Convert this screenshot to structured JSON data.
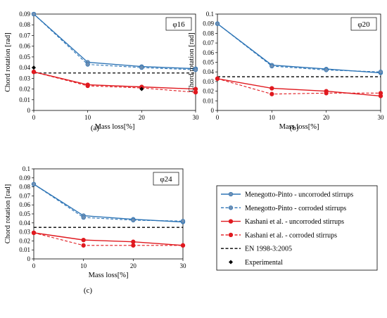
{
  "chart_data": [
    {
      "type": "line",
      "panel_label": "(a)",
      "title": "φ16",
      "xlabel": "Mass loss[%]",
      "ylabel": "Chord rotation [rad]",
      "xlim": [
        0,
        30
      ],
      "ylim": [
        0,
        0.09
      ],
      "x_ticks": [
        "0",
        "10",
        "20",
        "30"
      ],
      "y_ticks": [
        "0",
        "0.01",
        "0.02",
        "0.03",
        "0.04",
        "0.05",
        "0.06",
        "0.07",
        "0.08",
        "0.09"
      ],
      "x": [
        0,
        10,
        20,
        30
      ],
      "series": [
        {
          "name": "Menegotto-Pinto - uncorroded stirrups",
          "values": [
            0.09,
            0.045,
            0.041,
            0.039
          ]
        },
        {
          "name": "Menegotto-Pinto - corroded stirrups",
          "values": [
            0.09,
            0.043,
            0.04,
            0.038
          ]
        },
        {
          "name": "Kashani et al. - uncorroded stirrups",
          "values": [
            0.036,
            0.024,
            0.022,
            0.02
          ]
        },
        {
          "name": "Kashani et al. - corroded stirrups",
          "values": [
            0.036,
            0.023,
            0.021,
            0.017
          ]
        }
      ],
      "en_value": 0.035,
      "experimental": [
        {
          "x": 0,
          "y": 0.04
        },
        {
          "x": 20,
          "y": 0.02
        }
      ]
    },
    {
      "type": "line",
      "panel_label": "(b)",
      "title": "φ20",
      "xlabel": "Mass loss[%]",
      "ylabel": "Chord rotation [rad]",
      "xlim": [
        0,
        30
      ],
      "ylim": [
        0,
        0.1
      ],
      "x_ticks": [
        "0",
        "10",
        "20",
        "30"
      ],
      "y_ticks": [
        "0",
        "0.01",
        "0.02",
        "0.03",
        "0.04",
        "0.05",
        "0.06",
        "0.07",
        "0.08",
        "0.09",
        "0.1"
      ],
      "x": [
        0,
        10,
        20,
        30
      ],
      "series": [
        {
          "name": "Menegotto-Pinto - uncorroded stirrups",
          "values": [
            0.09,
            0.047,
            0.043,
            0.039
          ]
        },
        {
          "name": "Menegotto-Pinto - corroded stirrups",
          "values": [
            0.09,
            0.046,
            0.042,
            0.04
          ]
        },
        {
          "name": "Kashani et al. - uncorroded stirrups",
          "values": [
            0.033,
            0.023,
            0.02,
            0.015
          ]
        },
        {
          "name": "Kashani et al. - corroded stirrups",
          "values": [
            0.033,
            0.017,
            0.018,
            0.018
          ]
        }
      ],
      "en_value": 0.035,
      "experimental": []
    },
    {
      "type": "line",
      "panel_label": "(c)",
      "title": "φ24",
      "xlabel": "Mass loss[%]",
      "ylabel": "Chord rotation [rad]",
      "xlim": [
        0,
        30
      ],
      "ylim": [
        0,
        0.1
      ],
      "x_ticks": [
        "0",
        "10",
        "20",
        "30"
      ],
      "y_ticks": [
        "0",
        "0.01",
        "0.02",
        "0.03",
        "0.04",
        "0.05",
        "0.06",
        "0.07",
        "0.08",
        "0.09",
        "0.1"
      ],
      "x": [
        0,
        10,
        20,
        30
      ],
      "series": [
        {
          "name": "Menegotto-Pinto - uncorroded stirrups",
          "values": [
            0.083,
            0.048,
            0.044,
            0.041
          ]
        },
        {
          "name": "Menegotto-Pinto - corroded stirrups",
          "values": [
            0.083,
            0.046,
            0.043,
            0.042
          ]
        },
        {
          "name": "Kashani et al. - uncorroded stirrups",
          "values": [
            0.029,
            0.021,
            0.019,
            0.015
          ]
        },
        {
          "name": "Kashani et al. - corroded stirrups",
          "values": [
            0.029,
            0.015,
            0.015,
            0.015
          ]
        }
      ],
      "en_value": 0.035,
      "experimental": []
    }
  ],
  "legend": {
    "items": [
      {
        "label": "Menegotto-Pinto - uncorroded stirrups",
        "color": "#2E75B6",
        "dash": false,
        "marker": "circle"
      },
      {
        "label": "Menegotto-Pinto - corroded stirrups",
        "color": "#2E75B6",
        "dash": true,
        "marker": "circle"
      },
      {
        "label": "Kashani et al. - uncorroded stirrups",
        "color": "#E0191F",
        "dash": false,
        "marker": "circle"
      },
      {
        "label": "Kashani et al. - corroded stirrups",
        "color": "#E0191F",
        "dash": true,
        "marker": "circle"
      },
      {
        "label": "EN 1998-3:2005",
        "color": "#000000",
        "dash": true,
        "marker": "none"
      },
      {
        "label": "Experimental",
        "color": "#000000",
        "dash": false,
        "marker": "diamond"
      }
    ]
  },
  "colors": {
    "menegotto": "#2E75B6",
    "menegotto_marker": "#6F8FB3",
    "kashani": "#E0191F",
    "kashani_marker": "#E0191F",
    "en": "#000000"
  }
}
